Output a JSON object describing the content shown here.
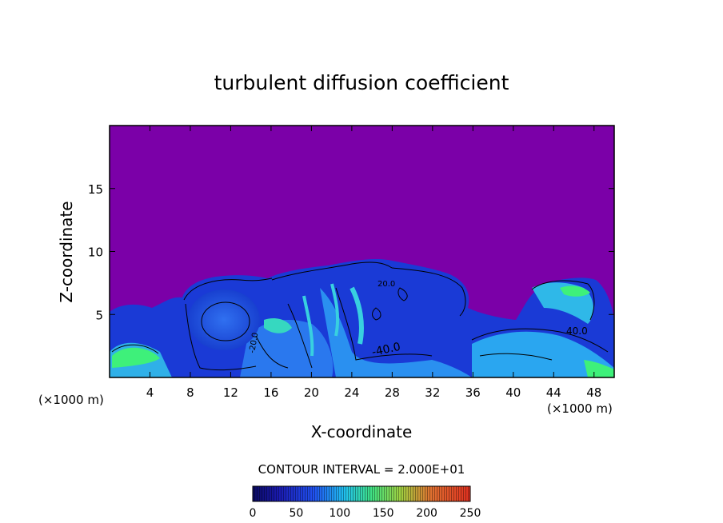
{
  "chart_data": {
    "type": "heatmap",
    "title": "turbulent diffusion coefficient",
    "xlabel": "X-coordinate",
    "ylabel": "Z-coordinate",
    "x_unit": "(×1000 m)",
    "xlim": [
      0,
      50
    ],
    "ylim": [
      0,
      20
    ],
    "x_ticks": [
      4,
      8,
      12,
      16,
      20,
      24,
      28,
      32,
      36,
      40,
      44,
      48
    ],
    "y_ticks": [
      5,
      10,
      15
    ],
    "contour_interval_text": "CONTOUR INTERVAL = 2.000E+01",
    "contour_labels": [
      "-40.0",
      "40.0",
      "20.0",
      "-20.0"
    ],
    "colorbar": {
      "min": 0,
      "max": 250,
      "ticks": [
        0,
        50,
        100,
        150,
        200,
        250
      ]
    },
    "colors": {
      "background_field": "#7b00a8",
      "low": "#1c3cd8",
      "mid": "#2fa0f0",
      "high": "#3ef07a"
    }
  }
}
